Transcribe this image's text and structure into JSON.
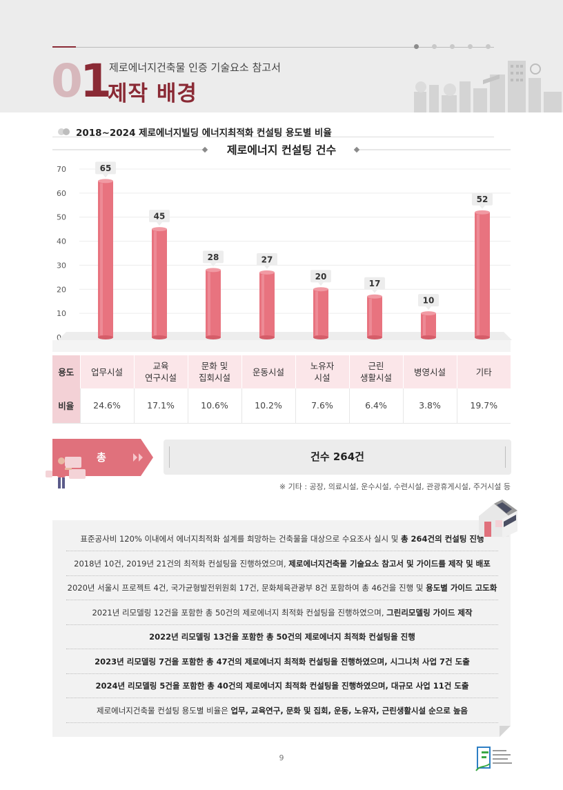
{
  "header": {
    "chapter_num_a": "0",
    "chapter_num_b": "1",
    "subtitle": "제로에너지건축물 인증 기술요소 참고서",
    "title": "제작 배경"
  },
  "section": {
    "heading": "2018~2024 제로에너지빌딩 에너지최적화 컨설팅 용도별 비율"
  },
  "chart_data": {
    "type": "bar",
    "title": "제로에너지 컨설팅 건수",
    "categories": [
      "업무시설",
      "교육 연구시설",
      "문화 및 집회시설",
      "운동시설",
      "노유자 시설",
      "근린 생활시설",
      "병영시설",
      "기타"
    ],
    "values": [
      65,
      45,
      28,
      27,
      20,
      17,
      10,
      52
    ],
    "ylim": [
      0,
      70
    ],
    "yticks": [
      0,
      10,
      20,
      30,
      40,
      50,
      60,
      70
    ],
    "grid": true,
    "bar_color": "#e8737f"
  },
  "table": {
    "use_label": "용도",
    "ratio_label": "비율",
    "uses": [
      [
        "업무시설"
      ],
      [
        "교육",
        "연구시설"
      ],
      [
        "문화 및",
        "집회시설"
      ],
      [
        "운동시설"
      ],
      [
        "노유자",
        "시설"
      ],
      [
        "근린",
        "생활시설"
      ],
      [
        "병영시설"
      ],
      [
        "기타"
      ]
    ],
    "ratios": [
      "24.6%",
      "17.1%",
      "10.6%",
      "10.2%",
      "7.6%",
      "6.4%",
      "3.8%",
      "19.7%"
    ]
  },
  "total": {
    "label": "총",
    "text": "건수 264건",
    "note": "※ 기타 : 공장, 의료시설, 운수시설, 수련시설, 관광휴게시설, 주거시설 등"
  },
  "summary": [
    {
      "plain": "표준공사비 120% 이내에서 에너지최적화 설계를 희망하는 건축물을 대상으로 수요조사 실시 및 ",
      "bold": "총 264건의 컨설팅 진행"
    },
    {
      "plain": "2018년 10건, 2019년 21건의 최적화 컨설팅을 진행하였으며, ",
      "bold": "제로에너지건축물 기술요소 참고서 및 가이드를 제작 및 배포"
    },
    {
      "plain": "2020년 서울시 프로젝트 4건, 국가균형발전위원회 17건, 문화체육관광부 8건 포함하여 총 46건을 진행 및 ",
      "bold": "용도별 가이드 고도화"
    },
    {
      "plain": "2021년 리모델링 12건을 포함한 총 50건의 제로에너지 최적화 컨설팅을 진행하였으며, ",
      "bold": "그린리모델링 가이드 제작"
    },
    {
      "plain": "",
      "bold": "2022년 리모델링 13건을 포함한 총 50건의 제로에너지 최적화 컨설팅을 진행"
    },
    {
      "plain": "",
      "bold": "2023년 리모델링 7건을 포함한 총 47건의 제로에너지 최적화 컨설팅을 진행하였으며, 시그니처 사업 7건 도출"
    },
    {
      "plain": "",
      "bold": "2024년 리모델링 5건을 포함한 총 40건의 제로에너지 최적화 컨설팅을 진행하였으며, 대규모 사업 11건 도출"
    },
    {
      "plain": "제로에너지건축물 컨설팅 용도별 비율은 ",
      "bold": "업무, 교육연구, 문화 및 집회, 운동, 노유자, 근린생활시설 순으로 높음"
    }
  ],
  "page": {
    "number": "9"
  },
  "colors": {
    "brand": "#8a2a35",
    "bar": "#e8737f",
    "pink_light": "#fbe6e9",
    "pink_mid": "#f3d1d6",
    "tag": "#e0717c"
  }
}
